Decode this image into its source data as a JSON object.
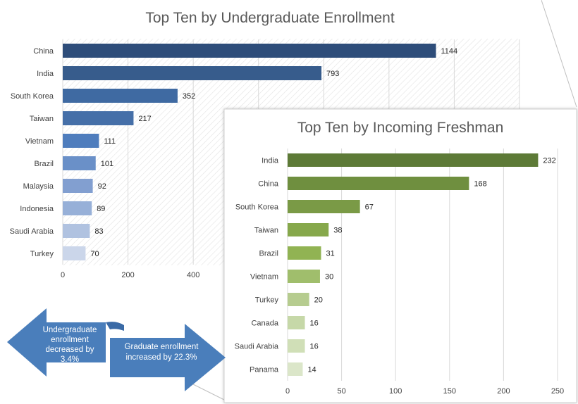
{
  "chart_data": [
    {
      "type": "bar",
      "orientation": "horizontal",
      "title": "Top Ten by Undergraduate Enrollment",
      "categories": [
        "China",
        "India",
        "South Korea",
        "Taiwan",
        "Vietnam",
        "Brazil",
        "Malaysia",
        "Indonesia",
        "Saudi Arabia",
        "Turkey"
      ],
      "values": [
        1144,
        793,
        352,
        217,
        111,
        101,
        92,
        89,
        83,
        70
      ],
      "xlim": [
        0,
        1400
      ],
      "xticks_visible": [
        0,
        200,
        400
      ],
      "grid": true,
      "colors": [
        "#2e4d7a",
        "#375c8c",
        "#3f6aa2",
        "#456fa8",
        "#4f7dbd",
        "#6a90c8",
        "#829fd0",
        "#97b0d8",
        "#b0c2e0",
        "#cbd6ea"
      ]
    },
    {
      "type": "bar",
      "orientation": "horizontal",
      "title": "Top Ten by Incoming Freshman",
      "categories": [
        "India",
        "China",
        "South Korea",
        "Taiwan",
        "Brazil",
        "Vietnam",
        "Turkey",
        "Canada",
        "Saudi Arabia",
        "Panama"
      ],
      "values": [
        232,
        168,
        67,
        38,
        31,
        30,
        20,
        16,
        16,
        14
      ],
      "xlim": [
        0,
        250
      ],
      "xticks": [
        0,
        50,
        100,
        150,
        200,
        250
      ],
      "grid": true,
      "colors": [
        "#5d7a37",
        "#6f8f3f",
        "#7a9a46",
        "#86a84b",
        "#91b353",
        "#a0be6c",
        "#b6cc8f",
        "#c6d8a8",
        "#d0dfb7",
        "#dbe6c9"
      ]
    }
  ],
  "callouts": {
    "left_arrow_text": [
      "Undergraduate",
      "enrollment",
      "decreased by",
      "3.4%"
    ],
    "right_arrow_text": [
      "Graduate enrollment",
      "increased by 22.3%"
    ],
    "fill_color": "#4a7ebb"
  }
}
